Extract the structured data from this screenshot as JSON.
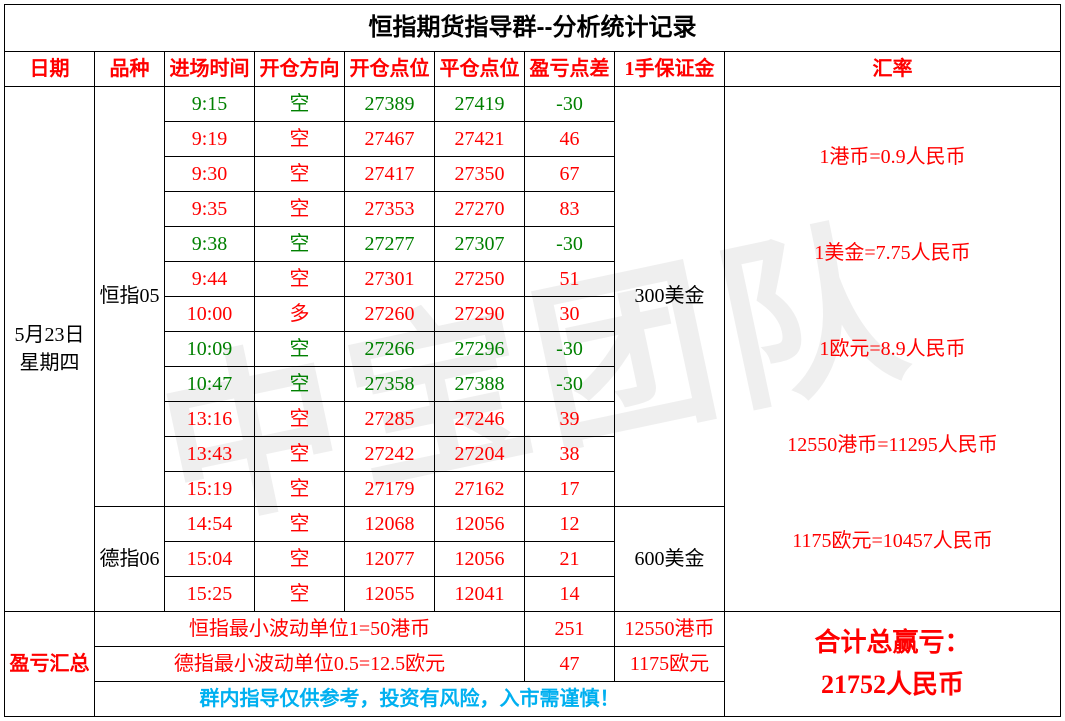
{
  "watermark": "中宝团队",
  "title": "恒指期货指导群--分析统计记录",
  "headers": {
    "date": "日期",
    "product": "品种",
    "entry_time": "进场时间",
    "direction": "开仓方向",
    "open_pt": "开仓点位",
    "close_pt": "平仓点位",
    "diff": "盈亏点差",
    "margin": "1手保证金",
    "rate": "汇率"
  },
  "date_label": "5月23日\n星期四",
  "product1": "恒指05",
  "product2": "德指06",
  "rows1": [
    {
      "t": "9:15",
      "d": "空",
      "o": "27389",
      "c": "27419",
      "pl": "-30",
      "cls": "grn"
    },
    {
      "t": "9:19",
      "d": "空",
      "o": "27467",
      "c": "27421",
      "pl": "46",
      "cls": "red"
    },
    {
      "t": "9:30",
      "d": "空",
      "o": "27417",
      "c": "27350",
      "pl": "67",
      "cls": "red"
    },
    {
      "t": "9:35",
      "d": "空",
      "o": "27353",
      "c": "27270",
      "pl": "83",
      "cls": "red"
    },
    {
      "t": "9:38",
      "d": "空",
      "o": "27277",
      "c": "27307",
      "pl": "-30",
      "cls": "grn"
    },
    {
      "t": "9:44",
      "d": "空",
      "o": "27301",
      "c": "27250",
      "pl": "51",
      "cls": "red"
    },
    {
      "t": "10:00",
      "d": "多",
      "o": "27260",
      "c": "27290",
      "pl": "30",
      "cls": "red"
    },
    {
      "t": "10:09",
      "d": "空",
      "o": "27266",
      "c": "27296",
      "pl": "-30",
      "cls": "grn"
    },
    {
      "t": "10:47",
      "d": "空",
      "o": "27358",
      "c": "27388",
      "pl": "-30",
      "cls": "grn"
    },
    {
      "t": "13:16",
      "d": "空",
      "o": "27285",
      "c": "27246",
      "pl": "39",
      "cls": "red"
    },
    {
      "t": "13:43",
      "d": "空",
      "o": "27242",
      "c": "27204",
      "pl": "38",
      "cls": "red"
    },
    {
      "t": "15:19",
      "d": "空",
      "o": "27179",
      "c": "27162",
      "pl": "17",
      "cls": "red"
    }
  ],
  "rows2": [
    {
      "t": "14:54",
      "d": "空",
      "o": "12068",
      "c": "12056",
      "pl": "12",
      "cls": "red"
    },
    {
      "t": "15:04",
      "d": "空",
      "o": "12077",
      "c": "12056",
      "pl": "21",
      "cls": "red"
    },
    {
      "t": "15:25",
      "d": "空",
      "o": "12055",
      "c": "12041",
      "pl": "14",
      "cls": "red"
    }
  ],
  "margin1": "300美金",
  "margin2": "600美金",
  "rates": [
    "1港币=0.9人民币",
    "1美金=7.75人民币",
    "1欧元=8.9人民币",
    "12550港币=11295人民币",
    "1175欧元=10457人民币"
  ],
  "summary_label": "盈亏汇总",
  "sum1_note": "恒指最小波动单位1=50港币",
  "sum1_val": "251",
  "sum1_marg": "12550港币",
  "sum2_note": "德指最小波动单位0.5=12.5欧元",
  "sum2_val": "47",
  "sum2_marg": "1175欧元",
  "disclaimer": "群内指导仅供参考，投资有风险，入市需谨慎！",
  "total_label": "合计总赢亏：",
  "total_val": "21752人民币",
  "colors": {
    "header": "#ff0000",
    "profit": "#ff0000",
    "loss": "#008000",
    "disclaimer": "#00b0f0",
    "border": "#000000",
    "bg": "#ffffff"
  }
}
